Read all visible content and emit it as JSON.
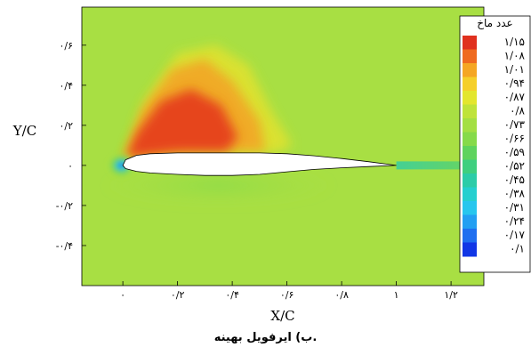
{
  "caption": "ب) ایرفویل بهینه.",
  "chart_data": {
    "type": "heatmap",
    "xlabel": "X/C",
    "ylabel": "Y/C",
    "xlim": [
      -0.15,
      1.32
    ],
    "ylim": [
      -0.6,
      0.79
    ],
    "x_ticks": [
      {
        "value": 0,
        "label": "۰"
      },
      {
        "value": 0.2,
        "label": "۰/۲"
      },
      {
        "value": 0.4,
        "label": "۰/۴"
      },
      {
        "value": 0.6,
        "label": "۰/۶"
      },
      {
        "value": 0.8,
        "label": "۰/۸"
      },
      {
        "value": 1.0,
        "label": "۱"
      },
      {
        "value": 1.2,
        "label": "۱/۲"
      }
    ],
    "y_ticks": [
      {
        "value": -0.4,
        "label": "-۰/۴"
      },
      {
        "value": -0.2,
        "label": "-۰/۲"
      },
      {
        "value": 0,
        "label": "۰"
      },
      {
        "value": 0.2,
        "label": "۰/۲"
      },
      {
        "value": 0.4,
        "label": "۰/۴"
      },
      {
        "value": 0.6,
        "label": "۰/۶"
      }
    ],
    "colorbar": {
      "title": "عدد ماخ",
      "levels": [
        {
          "value": 1.15,
          "label": "۱/۱۵",
          "color": "#e0301e"
        },
        {
          "value": 1.08,
          "label": "۱/۰۸",
          "color": "#ef6a1f"
        },
        {
          "value": 1.01,
          "label": "۱/۰۱",
          "color": "#f5a623"
        },
        {
          "value": 0.94,
          "label": "۰/۹۴",
          "color": "#f5cf2a"
        },
        {
          "value": 0.87,
          "label": "۰/۸۷",
          "color": "#e3e62e"
        },
        {
          "value": 0.8,
          "label": "۰/۸",
          "color": "#bfe33a"
        },
        {
          "value": 0.73,
          "label": "۰/۷۳",
          "color": "#a4df43"
        },
        {
          "value": 0.66,
          "label": "۰/۶۶",
          "color": "#86da4a"
        },
        {
          "value": 0.59,
          "label": "۰/۵۹",
          "color": "#5fd35e"
        },
        {
          "value": 0.52,
          "label": "۰/۵۲",
          "color": "#3fcf7f"
        },
        {
          "value": 0.45,
          "label": "۰/۴۵",
          "color": "#2ccca8"
        },
        {
          "value": 0.38,
          "label": "۰/۳۸",
          "color": "#25cfcf"
        },
        {
          "value": 0.31,
          "label": "۰/۳۱",
          "color": "#27c6ee"
        },
        {
          "value": 0.24,
          "label": "۰/۲۴",
          "color": "#239ff2"
        },
        {
          "value": 0.17,
          "label": "۰/۱۷",
          "color": "#1f6ff0"
        },
        {
          "value": 0.1,
          "label": "۰/۱",
          "color": "#1136e6"
        }
      ]
    },
    "freestream_mach": 0.77,
    "supersonic_region": {
      "x_range": [
        0.0,
        0.52
      ],
      "y_range": [
        0.02,
        0.55
      ],
      "peak_mach": 1.15
    },
    "airfoil": {
      "chord": 1.0,
      "upper": [
        [
          0,
          0
        ],
        [
          0.01,
          0.028
        ],
        [
          0.05,
          0.05
        ],
        [
          0.1,
          0.058
        ],
        [
          0.2,
          0.062
        ],
        [
          0.3,
          0.062
        ],
        [
          0.4,
          0.062
        ],
        [
          0.5,
          0.062
        ],
        [
          0.6,
          0.058
        ],
        [
          0.7,
          0.048
        ],
        [
          0.8,
          0.034
        ],
        [
          0.9,
          0.018
        ],
        [
          1.0,
          0.0
        ]
      ],
      "lower": [
        [
          0,
          0
        ],
        [
          0.01,
          -0.016
        ],
        [
          0.05,
          -0.03
        ],
        [
          0.1,
          -0.038
        ],
        [
          0.2,
          -0.045
        ],
        [
          0.3,
          -0.05
        ],
        [
          0.4,
          -0.05
        ],
        [
          0.5,
          -0.045
        ],
        [
          0.6,
          -0.032
        ],
        [
          0.7,
          -0.02
        ],
        [
          0.8,
          -0.012
        ],
        [
          0.9,
          -0.006
        ],
        [
          1.0,
          0.0
        ]
      ]
    },
    "grid": false
  }
}
